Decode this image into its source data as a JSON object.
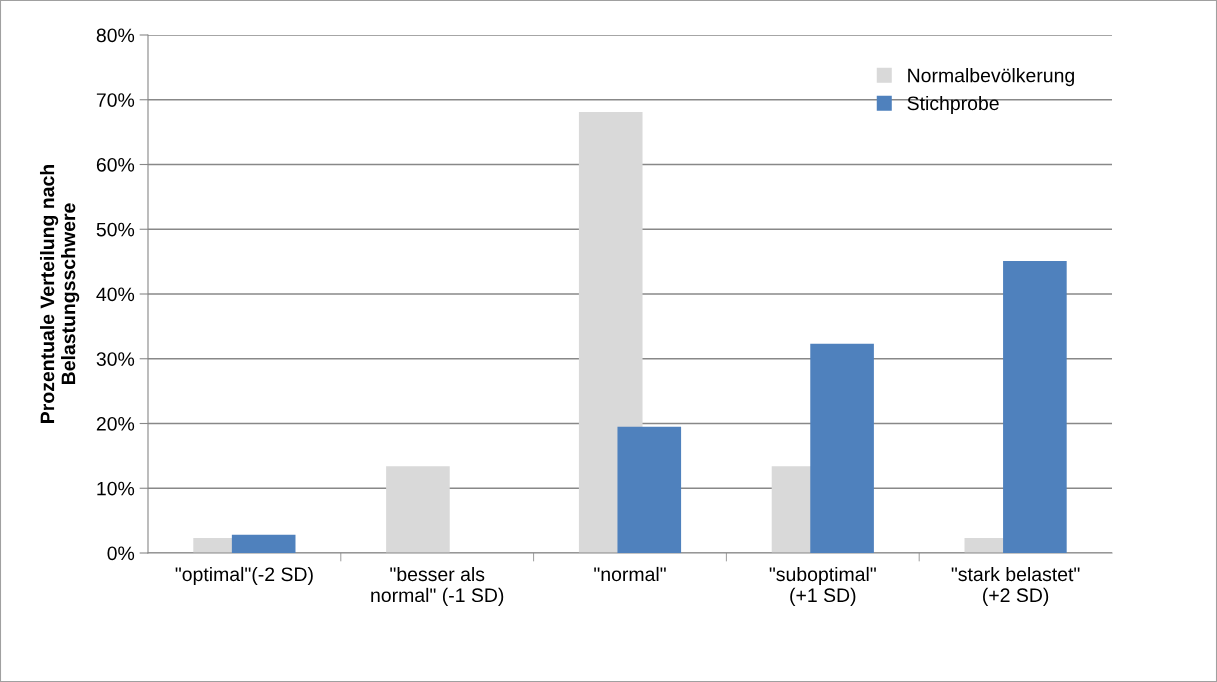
{
  "chart_data": {
    "type": "bar",
    "ylabel": "Prozentuale Verteilung nach\nBelastungsschwere",
    "categories": [
      "\"optimal\"(-2 SD)",
      "\"besser als\nnormal\" (-1 SD)",
      "\"normal\"",
      "\"suboptimal\"\n(+1 SD)",
      "\"stark belastet\"\n(+2 SD)"
    ],
    "series": [
      {
        "name": "Normalbevölkerung",
        "color": "#d9d9d9",
        "values": [
          2.3,
          13.4,
          68.1,
          13.4,
          2.3
        ]
      },
      {
        "name": "Stichprobe",
        "color": "#4f81bd",
        "values": [
          2.8,
          0,
          19.5,
          32.3,
          45.1
        ]
      }
    ],
    "ylim": [
      0,
      80
    ],
    "yticks": [
      {
        "value": 0,
        "label": "0%"
      },
      {
        "value": 10,
        "label": "10%"
      },
      {
        "value": 20,
        "label": "20%"
      },
      {
        "value": 30,
        "label": "30%"
      },
      {
        "value": 40,
        "label": "40%"
      },
      {
        "value": 50,
        "label": "50%"
      },
      {
        "value": 60,
        "label": "60%"
      },
      {
        "value": 70,
        "label": "70%"
      },
      {
        "value": 80,
        "label": "80%"
      }
    ],
    "grid": "y",
    "legend": "top right"
  }
}
